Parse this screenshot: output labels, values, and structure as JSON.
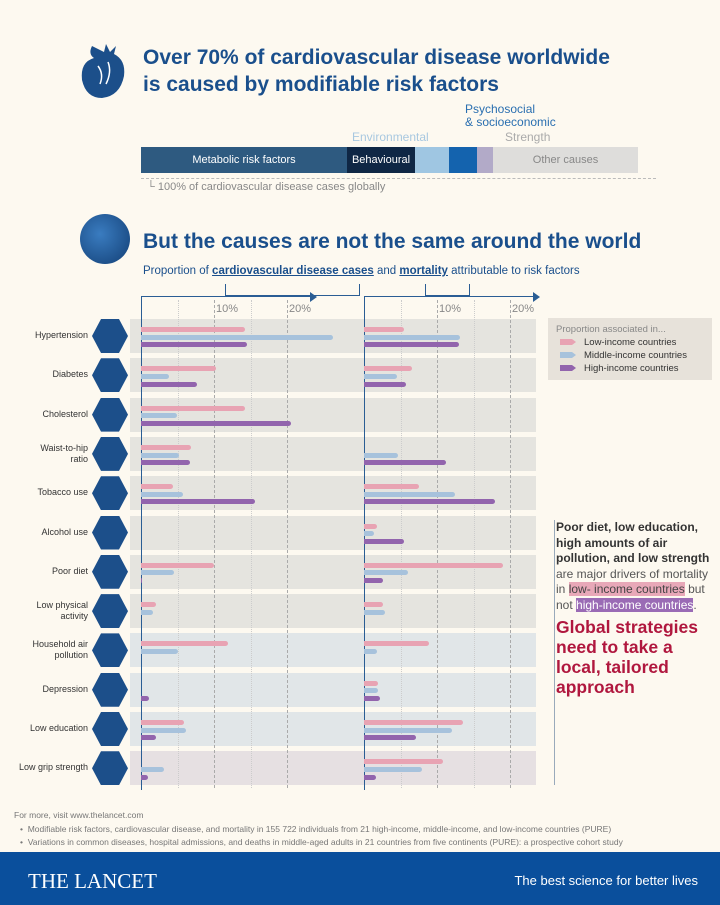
{
  "header": {
    "title_line1": "Over 70% of cardiovascular disease worldwide",
    "title_line2": "is caused by modifiable risk factors"
  },
  "overview_bar": {
    "segments": [
      {
        "label": "Metabolic risk factors",
        "percent": 41.4,
        "color": "#2e5a80"
      },
      {
        "label": "Behavioural",
        "percent": 13.7,
        "color": "#0f2745"
      },
      {
        "label": "Environmental",
        "percent": 6.8,
        "color": "#9fc6e2"
      },
      {
        "label": "Psychosocial & socioeconomic",
        "percent": 5.6,
        "color": "#1463ae"
      },
      {
        "label": "Strength",
        "percent": 3.2,
        "color": "#b2aac8"
      },
      {
        "label": "Other causes",
        "percent": 29.2,
        "color": "#dedddb"
      }
    ],
    "env_label": "Environmental",
    "psych_label_1": "Psychosocial",
    "psych_label_2": "& socioeconomic",
    "strength_label": "Strength",
    "total_label": "100% of cardiovascular disease cases globally"
  },
  "section2": {
    "title": "But the causes are not the same around the world",
    "subtitle_pre": "Proportion of ",
    "subtitle_cases": "cardiovascular disease cases",
    "subtitle_mid": " and ",
    "subtitle_mort": "mortality",
    "subtitle_post": " attributable to risk factors"
  },
  "legend": {
    "title": "Proportion associated in...",
    "items": [
      "Low-income countries",
      "Middle-income countries",
      "High-income countries"
    ]
  },
  "colors": {
    "low": "#e8a3b3",
    "middle": "#a7c2dc",
    "high": "#9264ad",
    "accent": "#1a4f8c"
  },
  "chart_data": {
    "type": "bar",
    "orientation": "horizontal",
    "xlim": [
      0,
      25
    ],
    "tick_labels": [
      "10%",
      "20%"
    ],
    "panels": [
      "cardiovascular disease cases",
      "mortality"
    ],
    "categories": [
      "Hypertension",
      "Diabetes",
      "Cholesterol",
      "Waist-to-hip\nratio",
      "Tobacco use",
      "Alcohol use",
      "Poor diet",
      "Low physical\nactivity",
      "Household air\npollution",
      "Depression",
      "Low education",
      "Low grip strength"
    ],
    "icons": [
      "heart-gauge-icon",
      "glucose-meter-icon",
      "artery-icon",
      "body-icon",
      "cigarette-icon",
      "bottle-glass-icon",
      "burger-icon",
      "running-icon",
      "smoke-icon",
      "head-icon",
      "graduation-cap-icon",
      "hand-icon"
    ],
    "cases": [
      {
        "name": "Low-income countries",
        "values": [
          14.2,
          10.3,
          14.2,
          6.9,
          4.4,
          0,
          10.0,
          2.1,
          11.9,
          0,
          5.9,
          0
        ]
      },
      {
        "name": "Middle-income countries",
        "values": [
          26.3,
          3.9,
          4.9,
          5.2,
          5.8,
          0,
          4.5,
          1.6,
          5.1,
          0,
          6.2,
          3.2
        ]
      },
      {
        "name": "High-income countries",
        "values": [
          14.5,
          7.7,
          20.5,
          6.7,
          15.6,
          0,
          0.1,
          0,
          0,
          1.1,
          2.0,
          1.0
        ]
      }
    ],
    "mortality": [
      {
        "name": "Low-income countries",
        "values": [
          5.5,
          6.6,
          0,
          0,
          7.5,
          1.8,
          19.1,
          2.6,
          8.9,
          1.9,
          13.6,
          10.8
        ]
      },
      {
        "name": "Middle-income countries",
        "values": [
          13.1,
          4.5,
          0,
          4.7,
          12.5,
          1.4,
          6.0,
          2.9,
          1.8,
          1.9,
          12.1,
          7.9
        ]
      },
      {
        "name": "High-income countries",
        "values": [
          13.0,
          5.8,
          0,
          11.3,
          17.9,
          5.5,
          2.6,
          0,
          0,
          2.2,
          7.1,
          1.6
        ]
      }
    ]
  },
  "annotation": {
    "bold": "Poor diet, low education, high amounts of air pollution, and low strength",
    "t1": " are major drivers of mortality in ",
    "hl_low": "low- income countries",
    "t2": " but not ",
    "hl_high": "high-income countries",
    "t3": ".",
    "headline": "Global strategies need to take a local, tailored approach"
  },
  "footer": {
    "more": "For more, visit www.thelancet.com",
    "refs": [
      "Modifiable risk factors, cardiovascular disease, and mortality in 155 722 individuals from 21 high-income, middle-income, and low-income countries (PURE)",
      "Variations in common diseases, hospital admissions, and deaths in middle-aged adults in 21 countries from five continents (PURE): a prospective cohort study"
    ],
    "brand": "THE LANCET",
    "tagline": "The best science for better lives"
  }
}
